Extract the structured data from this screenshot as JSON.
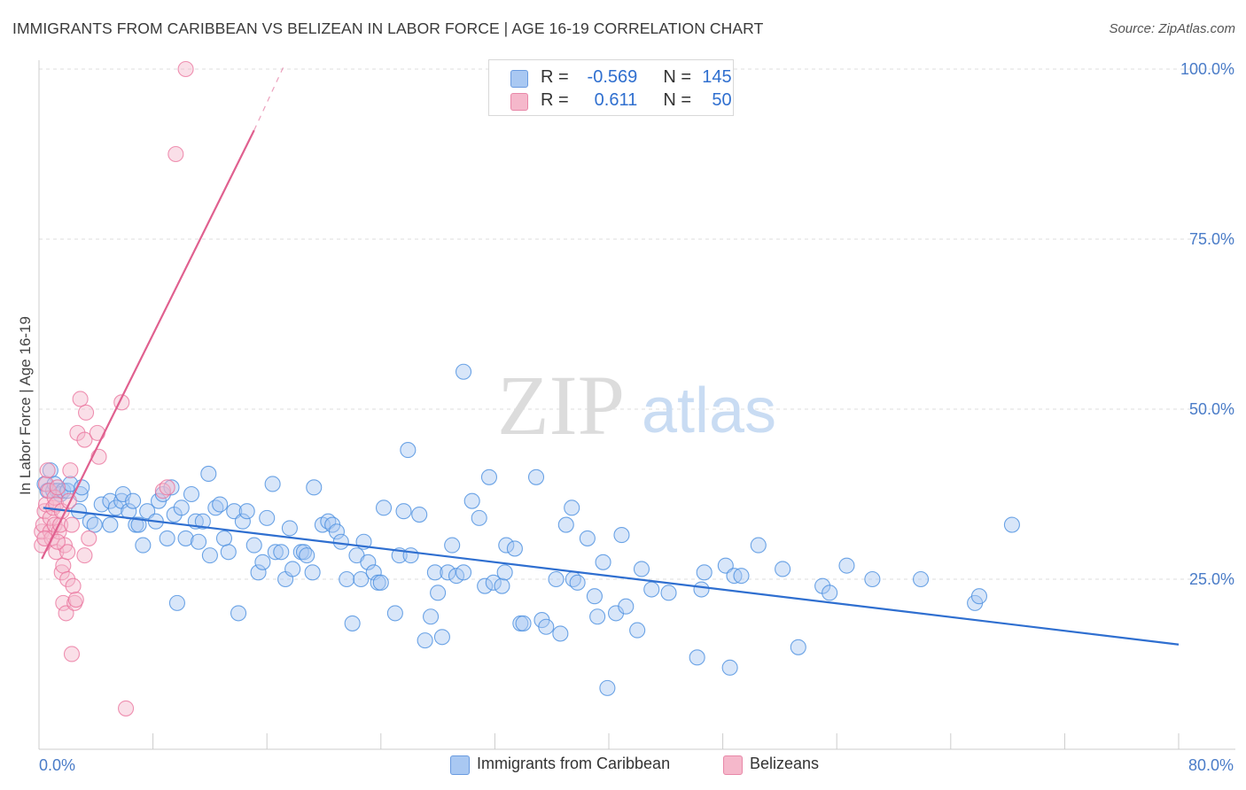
{
  "title": "IMMIGRANTS FROM CARIBBEAN VS BELIZEAN IN LABOR FORCE | AGE 16-19 CORRELATION CHART",
  "source": "Source: ZipAtlas.com",
  "watermark": {
    "zip": "ZIP",
    "atlas": "atlas"
  },
  "legend_top": [
    {
      "r_label": "R =",
      "r_value": "-0.569",
      "n_label": "N =",
      "n_value": "145",
      "color": "#a9c8f2"
    },
    {
      "r_label": "R =",
      "r_value": "0.611",
      "n_label": "N =",
      "n_value": "50",
      "color": "#f5b8cb"
    }
  ],
  "legend_bottom": [
    {
      "label": "Immigrants from Caribbean",
      "color": "#a9c8f2"
    },
    {
      "label": "Belizeans",
      "color": "#f5b8cb"
    }
  ],
  "chart_data": {
    "type": "scatter",
    "title": "IMMIGRANTS FROM CARIBBEAN VS BELIZEAN IN LABOR FORCE | AGE 16-19 CORRELATION CHART",
    "xlabel": "",
    "ylabel": "In Labor Force | Age 16-19",
    "xlim": [
      0,
      80
    ],
    "ylim": [
      0,
      100
    ],
    "x_tick_labels": [
      "0.0%",
      "80.0%"
    ],
    "y_tick_labels": [
      "100.0%",
      "75.0%",
      "50.0%",
      "25.0%"
    ],
    "y_ticks": [
      100,
      75,
      50,
      25
    ],
    "grid": true,
    "legend_position": "top-center",
    "colors": {
      "caribbean": "#4a8fe0",
      "caribbean_fill": "#a9c8f2",
      "belizean": "#ea6f9a",
      "belizean_fill": "#f5b8cb",
      "trend_blue": "#2f6fd0",
      "trend_pink": "#e0608f"
    },
    "series": [
      {
        "name": "Immigrants from Caribbean",
        "trend": {
          "x": [
            0.3,
            80
          ],
          "y": [
            35.5,
            15.4
          ]
        },
        "points": [
          [
            0.4,
            39
          ],
          [
            0.6,
            38
          ],
          [
            0.8,
            41
          ],
          [
            1.0,
            38
          ],
          [
            1.1,
            39
          ],
          [
            1.3,
            38
          ],
          [
            1.5,
            37.5
          ],
          [
            1.7,
            38
          ],
          [
            2.0,
            38
          ],
          [
            2.2,
            39
          ],
          [
            2.9,
            37.5
          ],
          [
            3.0,
            38.5
          ],
          [
            2.8,
            35
          ],
          [
            3.6,
            33.5
          ],
          [
            3.9,
            33
          ],
          [
            4.4,
            36
          ],
          [
            5.0,
            33
          ],
          [
            5.0,
            36.5
          ],
          [
            5.4,
            35.5
          ],
          [
            5.8,
            36.5
          ],
          [
            5.9,
            37.5
          ],
          [
            6.3,
            35
          ],
          [
            6.6,
            36.5
          ],
          [
            6.8,
            33
          ],
          [
            7.0,
            33
          ],
          [
            7.3,
            30
          ],
          [
            7.6,
            35
          ],
          [
            8.2,
            33.5
          ],
          [
            8.4,
            36.5
          ],
          [
            8.7,
            37.5
          ],
          [
            9.0,
            31
          ],
          [
            9.3,
            38.5
          ],
          [
            9.5,
            34.5
          ],
          [
            9.7,
            21.5
          ],
          [
            10.0,
            35.5
          ],
          [
            10.3,
            31
          ],
          [
            10.7,
            37.5
          ],
          [
            11.0,
            33.5
          ],
          [
            11.2,
            30.5
          ],
          [
            11.5,
            33.5
          ],
          [
            11.9,
            40.5
          ],
          [
            12.0,
            28.5
          ],
          [
            12.4,
            35.5
          ],
          [
            12.7,
            36
          ],
          [
            13.0,
            31
          ],
          [
            13.3,
            29
          ],
          [
            13.7,
            35
          ],
          [
            14.0,
            20
          ],
          [
            14.3,
            33.5
          ],
          [
            14.6,
            35
          ],
          [
            15.1,
            30
          ],
          [
            15.4,
            26
          ],
          [
            15.7,
            27.5
          ],
          [
            16.0,
            34
          ],
          [
            16.4,
            39
          ],
          [
            16.6,
            29
          ],
          [
            17.0,
            29
          ],
          [
            17.3,
            25
          ],
          [
            17.6,
            32.5
          ],
          [
            17.8,
            26.5
          ],
          [
            18.4,
            29
          ],
          [
            18.6,
            29
          ],
          [
            18.8,
            28.5
          ],
          [
            19.2,
            26
          ],
          [
            19.3,
            38.5
          ],
          [
            19.9,
            33
          ],
          [
            20.3,
            33.5
          ],
          [
            20.6,
            33
          ],
          [
            20.9,
            32
          ],
          [
            21.2,
            30.5
          ],
          [
            21.6,
            25
          ],
          [
            22.0,
            18.5
          ],
          [
            22.3,
            28.5
          ],
          [
            22.6,
            25
          ],
          [
            22.8,
            30.5
          ],
          [
            23.1,
            27.5
          ],
          [
            23.5,
            26
          ],
          [
            23.8,
            24.5
          ],
          [
            24.0,
            24.5
          ],
          [
            24.2,
            35.5
          ],
          [
            25.0,
            20
          ],
          [
            25.3,
            28.5
          ],
          [
            25.6,
            35
          ],
          [
            25.9,
            44
          ],
          [
            26.1,
            28.5
          ],
          [
            26.7,
            34.5
          ],
          [
            27.1,
            16
          ],
          [
            27.5,
            19.5
          ],
          [
            27.8,
            26
          ],
          [
            28.0,
            23
          ],
          [
            28.3,
            16.5
          ],
          [
            28.7,
            26
          ],
          [
            29.0,
            30
          ],
          [
            29.3,
            25.5
          ],
          [
            29.8,
            26
          ],
          [
            29.8,
            55.5
          ],
          [
            30.4,
            36.5
          ],
          [
            30.9,
            34
          ],
          [
            31.3,
            24
          ],
          [
            31.6,
            40
          ],
          [
            31.9,
            24.5
          ],
          [
            32.5,
            24
          ],
          [
            32.7,
            26
          ],
          [
            32.8,
            30
          ],
          [
            33.4,
            29.5
          ],
          [
            33.8,
            18.5
          ],
          [
            34.0,
            18.5
          ],
          [
            34.9,
            40
          ],
          [
            35.3,
            19
          ],
          [
            35.6,
            18
          ],
          [
            36.3,
            25
          ],
          [
            36.6,
            17
          ],
          [
            37.0,
            33
          ],
          [
            37.4,
            35.5
          ],
          [
            37.5,
            25
          ],
          [
            37.8,
            24.5
          ],
          [
            38.5,
            31
          ],
          [
            39.0,
            22.5
          ],
          [
            39.2,
            19.5
          ],
          [
            39.6,
            27.5
          ],
          [
            39.9,
            9
          ],
          [
            40.5,
            20
          ],
          [
            40.9,
            31.5
          ],
          [
            41.2,
            21
          ],
          [
            42.0,
            17.5
          ],
          [
            42.3,
            26.5
          ],
          [
            43.0,
            23.5
          ],
          [
            44.2,
            23
          ],
          [
            46.2,
            13.5
          ],
          [
            46.5,
            23.5
          ],
          [
            46.7,
            26
          ],
          [
            48.2,
            27
          ],
          [
            48.5,
            12
          ],
          [
            48.8,
            25.5
          ],
          [
            49.3,
            25.5
          ],
          [
            50.5,
            30
          ],
          [
            52.2,
            26.5
          ],
          [
            53.3,
            15
          ],
          [
            55.0,
            24
          ],
          [
            55.5,
            23
          ],
          [
            56.7,
            27
          ],
          [
            58.5,
            25
          ],
          [
            61.9,
            25
          ],
          [
            65.7,
            21.5
          ],
          [
            66.0,
            22.5
          ],
          [
            68.3,
            33
          ]
        ]
      },
      {
        "name": "Belizeans",
        "trend": {
          "x": [
            0.2,
            15.1
          ],
          "y": [
            28,
            91
          ],
          "dash_to": {
            "x": [
              15.1,
              17.2
            ],
            "y": [
              91,
              100.5
            ]
          }
        },
        "points": [
          [
            0.2,
            30
          ],
          [
            0.2,
            32
          ],
          [
            0.3,
            33
          ],
          [
            0.4,
            35
          ],
          [
            0.5,
            39
          ],
          [
            0.5,
            36
          ],
          [
            0.6,
            41
          ],
          [
            0.7,
            38
          ],
          [
            0.8,
            32
          ],
          [
            0.8,
            34
          ],
          [
            0.9,
            31
          ],
          [
            1.0,
            35.5
          ],
          [
            1.1,
            33
          ],
          [
            1.1,
            37
          ],
          [
            1.2,
            29
          ],
          [
            1.2,
            36
          ],
          [
            1.3,
            38.5
          ],
          [
            1.4,
            32
          ],
          [
            1.5,
            33
          ],
          [
            1.6,
            26
          ],
          [
            1.6,
            35
          ],
          [
            1.7,
            27
          ],
          [
            1.7,
            21.5
          ],
          [
            1.8,
            30
          ],
          [
            1.9,
            20
          ],
          [
            2.0,
            25
          ],
          [
            2.0,
            29
          ],
          [
            2.1,
            36.5
          ],
          [
            2.2,
            41
          ],
          [
            2.3,
            33
          ],
          [
            2.3,
            14
          ],
          [
            2.4,
            24
          ],
          [
            2.5,
            21.5
          ],
          [
            2.6,
            22
          ],
          [
            2.7,
            46.5
          ],
          [
            2.9,
            51.5
          ],
          [
            3.2,
            28.5
          ],
          [
            3.2,
            45.5
          ],
          [
            3.3,
            49.5
          ],
          [
            3.5,
            31
          ],
          [
            4.1,
            46.5
          ],
          [
            4.2,
            43
          ],
          [
            5.8,
            51
          ],
          [
            6.1,
            6
          ],
          [
            8.7,
            38
          ],
          [
            9.0,
            38.5
          ],
          [
            9.6,
            87.5
          ],
          [
            10.3,
            100
          ],
          [
            0.4,
            31
          ],
          [
            1.3,
            30.5
          ]
        ]
      }
    ]
  }
}
